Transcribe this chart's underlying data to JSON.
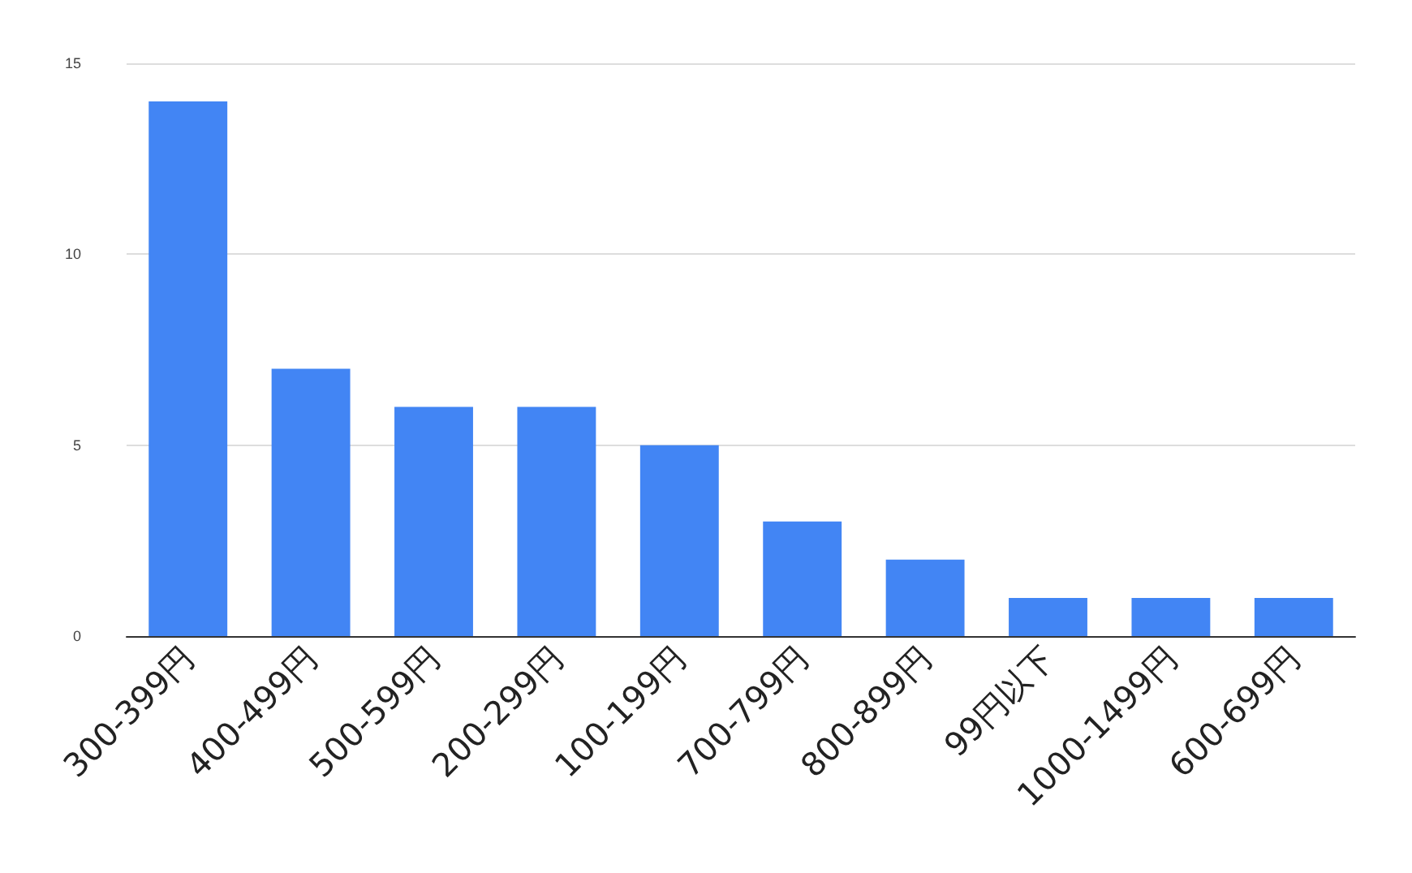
{
  "chart_data": {
    "type": "bar",
    "categories": [
      "300-399円",
      "400-499円",
      "500-599円",
      "200-299円",
      "100-199円",
      "700-799円",
      "800-899円",
      "99円以下",
      "1000-1499円",
      "600-699円"
    ],
    "values": [
      14,
      7,
      6,
      6,
      5,
      3,
      2,
      1,
      1,
      1
    ],
    "color": "#4285f4",
    "ylim": [
      0,
      15
    ],
    "yticks": [
      0,
      5,
      10,
      15
    ],
    "grid": "y"
  }
}
